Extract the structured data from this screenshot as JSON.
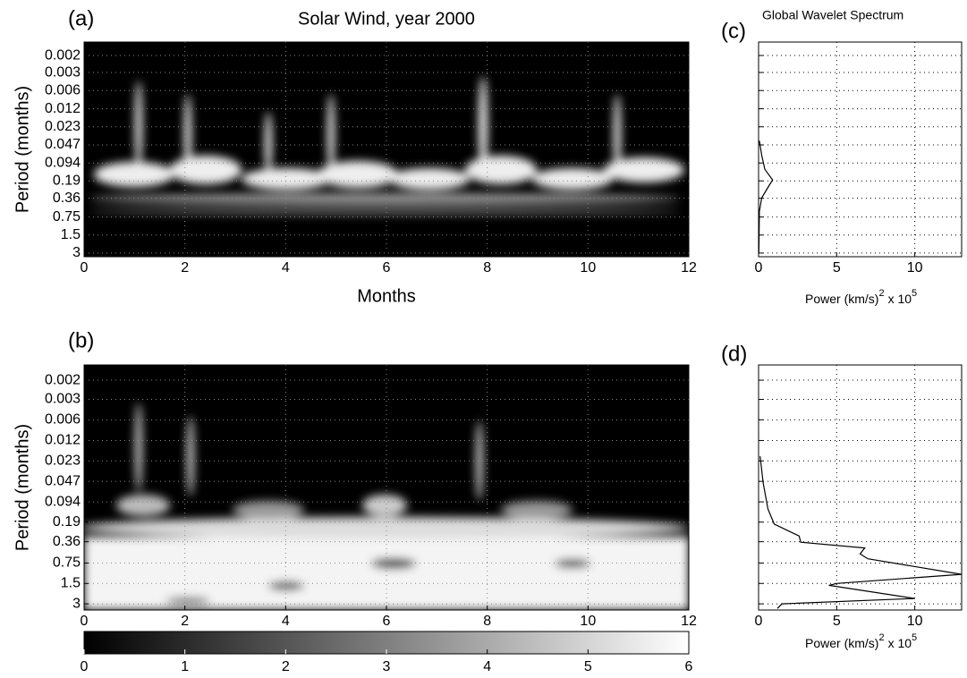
{
  "chart_data": [
    {
      "type": "heatmap",
      "panel_label": "(a)",
      "title": "Solar Wind, year 2000",
      "y_label": "Period (months)",
      "x_label": "Months",
      "xlim": [
        0,
        12
      ],
      "xticks": [
        0,
        2,
        4,
        6,
        8,
        10,
        12
      ],
      "ylim": [
        0.0009,
        3.45
      ],
      "log_y": true,
      "y_reversed": true,
      "grid": true,
      "yticks": [
        {
          "value": 0.00151,
          "label": "0.002"
        },
        {
          "value": 0.0029,
          "label": "0.003"
        },
        {
          "value": 0.0058,
          "label": "0.006"
        },
        {
          "value": 0.0117,
          "label": "0.012"
        },
        {
          "value": 0.0234,
          "label": "0.023"
        },
        {
          "value": 0.0469,
          "label": "0.047"
        },
        0.094,
        {
          "value": 0.187,
          "label": "0.19"
        },
        {
          "value": 0.364,
          "label": "0.36"
        },
        0.75,
        1.5,
        3
      ]
    },
    {
      "type": "heatmap",
      "panel_label": "(b)",
      "y_label": "Period (months)",
      "xlim": [
        0,
        12
      ],
      "xticks": [
        0,
        2,
        4,
        6,
        8,
        10,
        12
      ],
      "ylim": [
        0.0009,
        3.7
      ],
      "log_y": true,
      "y_reversed": true,
      "grid": true,
      "yticks": [
        {
          "value": 0.00151,
          "label": "0.002"
        },
        {
          "value": 0.0029,
          "label": "0.003"
        },
        {
          "value": 0.0058,
          "label": "0.006"
        },
        {
          "value": 0.0117,
          "label": "0.012"
        },
        {
          "value": 0.0234,
          "label": "0.023"
        },
        {
          "value": 0.0469,
          "label": "0.047"
        },
        0.094,
        {
          "value": 0.187,
          "label": "0.19"
        },
        {
          "value": 0.364,
          "label": "0.36"
        },
        0.75,
        1.5,
        3
      ],
      "colorbar": {
        "lim": [
          0,
          6
        ],
        "ticks": [
          0,
          1,
          2,
          3,
          4,
          5,
          6
        ]
      }
    },
    {
      "type": "line",
      "panel_label": "(c)",
      "title": "Global Wavelet Spectrum",
      "x_label": {
        "text": "Power (km/s)",
        "sup1": "2",
        "mid": "x 10",
        "sup2": "5"
      },
      "xlim": [
        0,
        13
      ],
      "xticks": [
        0,
        5,
        10
      ],
      "ylim": [
        0.0009,
        3.45
      ],
      "log_y": true,
      "y_reversed": true,
      "grid": true,
      "yticks": [
        0.00151,
        0.0029,
        0.0058,
        0.0117,
        0.0234,
        0.0469,
        0.094,
        0.187,
        0.364,
        0.75,
        1.5,
        3
      ],
      "series": [
        {
          "color": "#000000",
          "x": [
            0.05,
            0.2,
            0.4,
            0.9,
            0.6,
            0.2,
            0.05,
            0.02
          ],
          "y": [
            0.04,
            0.07,
            0.12,
            0.18,
            0.24,
            0.36,
            0.6,
            3
          ]
        }
      ]
    },
    {
      "type": "line",
      "panel_label": "(d)",
      "x_label": {
        "text": "Power (km/s)",
        "sup1": "2",
        "mid": "x 10",
        "sup2": "5"
      },
      "xlim": [
        0,
        13
      ],
      "xticks": [
        0,
        5,
        10
      ],
      "ylim": [
        0.0009,
        3.7
      ],
      "log_y": true,
      "y_reversed": true,
      "grid": true,
      "yticks": [
        0.00151,
        0.0029,
        0.0058,
        0.0117,
        0.0234,
        0.0469,
        0.094,
        0.187,
        0.364,
        0.75,
        1.5,
        3
      ],
      "series": [
        {
          "color": "#000000",
          "x": [
            0.1,
            0.3,
            0.6,
            1,
            2.6,
            2.7,
            6.8,
            6.5,
            7,
            13,
            5,
            4.5,
            10,
            1.5,
            1.2
          ],
          "y": [
            0.02,
            0.05,
            0.12,
            0.2,
            0.3,
            0.37,
            0.45,
            0.55,
            0.65,
            1.1,
            1.5,
            1.6,
            2.5,
            3,
            3.5
          ]
        }
      ]
    }
  ]
}
